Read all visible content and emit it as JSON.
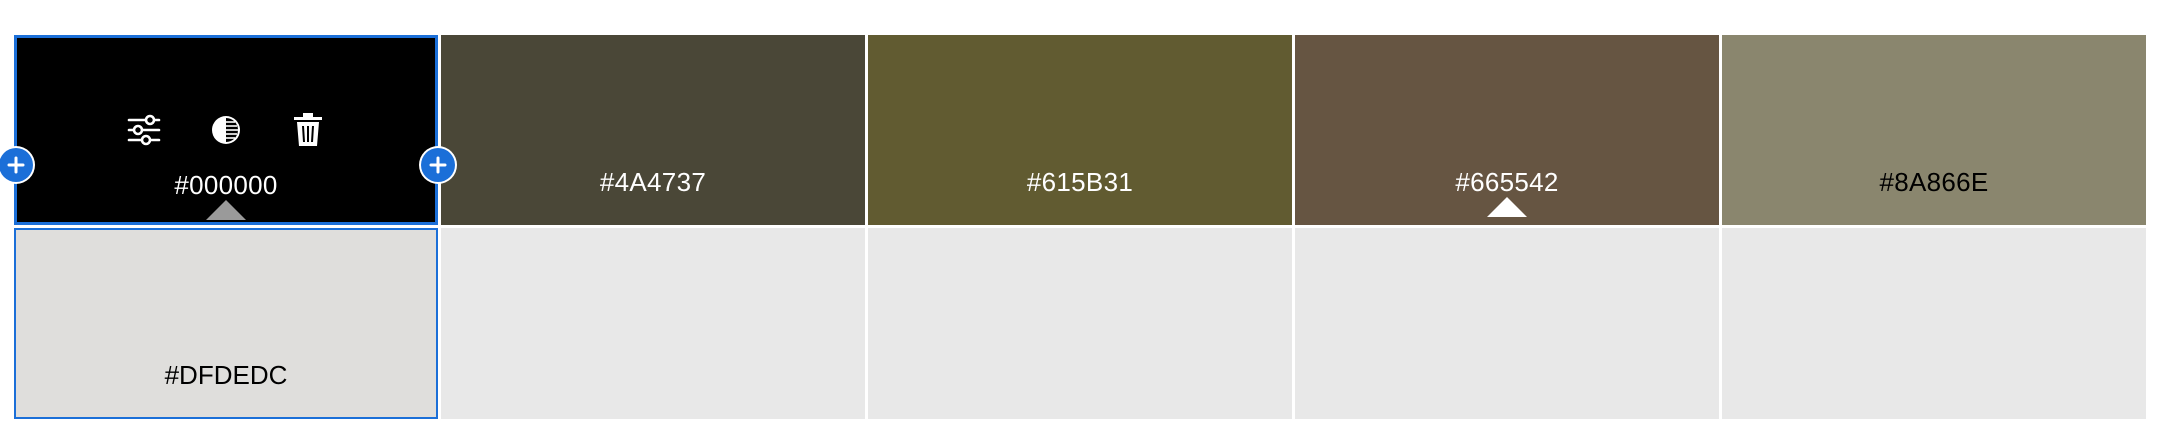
{
  "palette": {
    "colors": [
      {
        "hex": "#000000",
        "text_color": "#ffffff"
      },
      {
        "hex": "#4A4737",
        "text_color": "#ffffff"
      },
      {
        "hex": "#615B31",
        "text_color": "#ffffff"
      },
      {
        "hex": "#665542",
        "text_color": "#ffffff"
      },
      {
        "hex": "#8A866E",
        "text_color": "#000000"
      }
    ],
    "selected_index": 0
  },
  "shade_row": {
    "selected_shade": {
      "hex": "#DFDEDC",
      "text_color": "#000000"
    }
  },
  "icons": {
    "adjust": "sliders-icon",
    "contrast": "contrast-icon",
    "delete": "trash-icon",
    "add": "plus-icon"
  },
  "accent_color": "#1B6FD8"
}
